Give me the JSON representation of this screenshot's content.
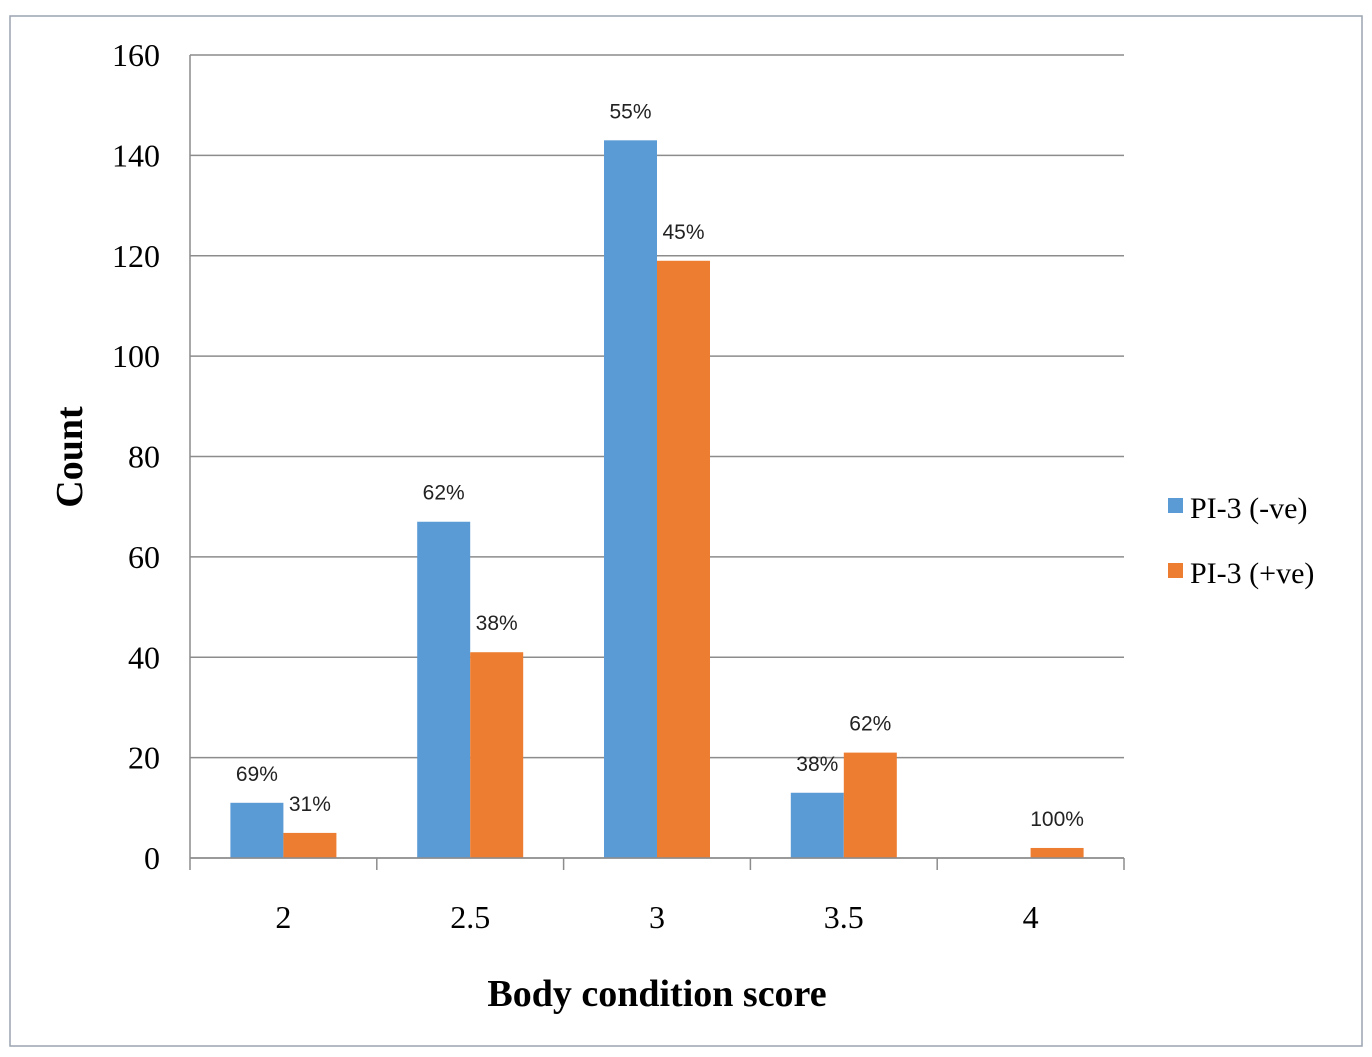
{
  "chart_data": {
    "type": "bar",
    "title": "",
    "xlabel": "Body condition score",
    "ylabel": "Count",
    "categories": [
      "2",
      "2.5",
      "3",
      "3.5",
      "4"
    ],
    "ylim": [
      0,
      160
    ],
    "yticks": [
      0,
      20,
      40,
      60,
      80,
      100,
      120,
      140,
      160
    ],
    "grid": true,
    "legend_position": "right",
    "series": [
      {
        "name": "PI-3 (-ve)",
        "color": "#5b9bd5",
        "values": [
          11,
          67,
          143,
          13,
          0
        ],
        "labels": [
          "69%",
          "62%",
          "55%",
          "38%",
          ""
        ]
      },
      {
        "name": "PI-3 (+ve)",
        "color": "#ed7d31",
        "values": [
          5,
          41,
          119,
          21,
          2
        ],
        "labels": [
          "31%",
          "38%",
          "45%",
          "62%",
          "100%"
        ]
      }
    ]
  }
}
